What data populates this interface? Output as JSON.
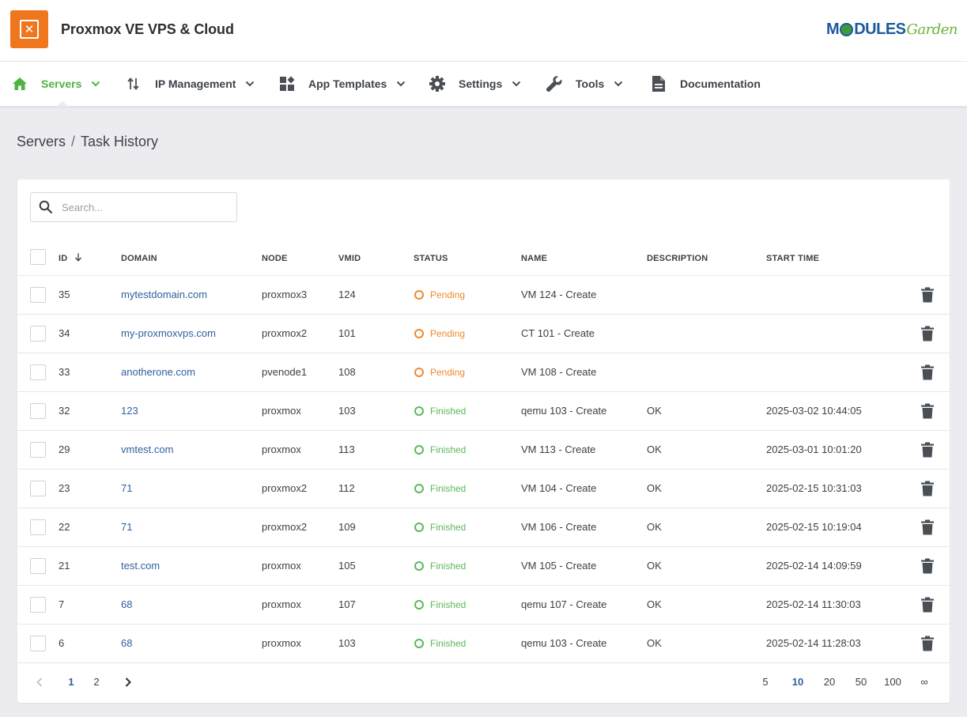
{
  "header": {
    "app_title": "Proxmox VE VPS & Cloud",
    "brand_part1": "M",
    "brand_part2": "DULES",
    "brand_part3": "Garden",
    "logo_icon": "x-box-icon"
  },
  "nav": {
    "items": [
      {
        "label": "Servers",
        "icon": "home-icon",
        "active": true,
        "dropdown": true
      },
      {
        "label": "IP Management",
        "icon": "arrows-updown-icon",
        "dropdown": true
      },
      {
        "label": "App Templates",
        "icon": "widgets-icon",
        "dropdown": true
      },
      {
        "label": "Settings",
        "icon": "gear-icon",
        "dropdown": true
      },
      {
        "label": "Tools",
        "icon": "wrench-icon",
        "dropdown": true
      },
      {
        "label": "Documentation",
        "icon": "document-icon",
        "dropdown": false
      }
    ],
    "accent_color": "#4fb243"
  },
  "breadcrumb": {
    "parent": "Servers",
    "separator": "/",
    "current": "Task History"
  },
  "search": {
    "placeholder": "Search...",
    "value": ""
  },
  "table": {
    "columns": {
      "id": "ID",
      "domain": "DOMAIN",
      "node": "NODE",
      "vmid": "VMID",
      "status": "STATUS",
      "name": "NAME",
      "description": "DESCRIPTION",
      "start_time": "START TIME"
    },
    "sort": {
      "column": "ID",
      "direction": "desc"
    },
    "rows": [
      {
        "id": "35",
        "domain": "mytestdomain.com",
        "node": "proxmox3",
        "vmid": "124",
        "status": "Pending",
        "name": "VM 124 - Create",
        "description": "",
        "start_time": ""
      },
      {
        "id": "34",
        "domain": "my-proxmoxvps.com",
        "node": "proxmox2",
        "vmid": "101",
        "status": "Pending",
        "name": "CT 101 - Create",
        "description": "",
        "start_time": ""
      },
      {
        "id": "33",
        "domain": "anotherone.com",
        "node": "pvenode1",
        "vmid": "108",
        "status": "Pending",
        "name": "VM 108 - Create",
        "description": "",
        "start_time": ""
      },
      {
        "id": "32",
        "domain": "123",
        "node": "proxmox",
        "vmid": "103",
        "status": "Finished",
        "name": "qemu 103 - Create",
        "description": "OK",
        "start_time": "2025-03-02 10:44:05"
      },
      {
        "id": "29",
        "domain": "vmtest.com",
        "node": "proxmox",
        "vmid": "113",
        "status": "Finished",
        "name": "VM 113 - Create",
        "description": "OK",
        "start_time": "2025-03-01 10:01:20"
      },
      {
        "id": "23",
        "domain": "71",
        "node": "proxmox2",
        "vmid": "112",
        "status": "Finished",
        "name": "VM 104 - Create",
        "description": "OK",
        "start_time": "2025-02-15 10:31:03"
      },
      {
        "id": "22",
        "domain": "71",
        "node": "proxmox2",
        "vmid": "109",
        "status": "Finished",
        "name": "VM 106 - Create",
        "description": "OK",
        "start_time": "2025-02-15 10:19:04"
      },
      {
        "id": "21",
        "domain": "test.com",
        "node": "proxmox",
        "vmid": "105",
        "status": "Finished",
        "name": "VM 105 - Create",
        "description": "OK",
        "start_time": "2025-02-14 14:09:59"
      },
      {
        "id": "7",
        "domain": "68",
        "node": "proxmox",
        "vmid": "107",
        "status": "Finished",
        "name": "qemu 107 - Create",
        "description": "OK",
        "start_time": "2025-02-14 11:30:03"
      },
      {
        "id": "6",
        "domain": "68",
        "node": "proxmox",
        "vmid": "103",
        "status": "Finished",
        "name": "qemu 103 - Create",
        "description": "OK",
        "start_time": "2025-02-14 11:28:03"
      }
    ],
    "status_colors": {
      "Pending": "#f0892f",
      "Finished": "#5cb85c"
    }
  },
  "pagination": {
    "pages": [
      "1",
      "2"
    ],
    "current_page": "1",
    "page_sizes": [
      "5",
      "10",
      "20",
      "50",
      "100",
      "∞"
    ],
    "current_page_size": "10"
  }
}
